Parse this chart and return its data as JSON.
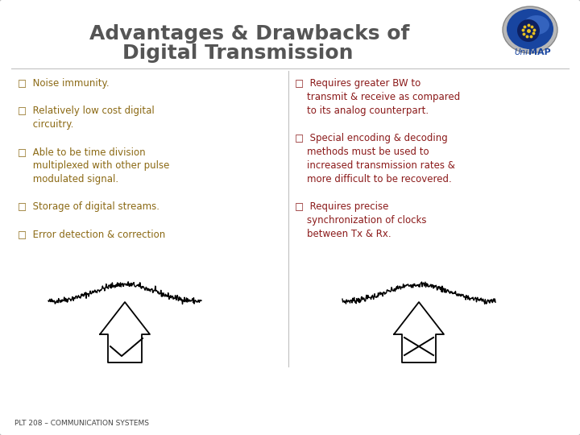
{
  "title_line1": "Advantages & Drawbacks of",
  "title_line2": "Digital Transmission",
  "title_color": "#555555",
  "title_fontsize": 18,
  "slide_bg": "#f0f0f0",
  "left_items": [
    "□  Noise immunity.",
    "□  Relatively low cost digital\n     circuitry.",
    "□  Able to be time division\n     multiplexed with other pulse\n     modulated signal.",
    "□  Storage of digital streams.",
    "□  Error detection & correction"
  ],
  "right_items": [
    "□  Requires greater BW to\n    transmit & receive as compared\n    to its analog counterpart.",
    "□  Special encoding & decoding\n    methods must be used to\n    increased transmission rates &\n    more difficult to be recovered.",
    "□  Requires precise\n    synchronization of clocks\n    between Tx & Rx."
  ],
  "left_text_color": "#8B6914",
  "right_text_color": "#8B1A1A",
  "footer_text": "PLT 208 – COMMUNICATION SYSTEMS",
  "footer_color": "#444444",
  "divider_color": "#999999"
}
